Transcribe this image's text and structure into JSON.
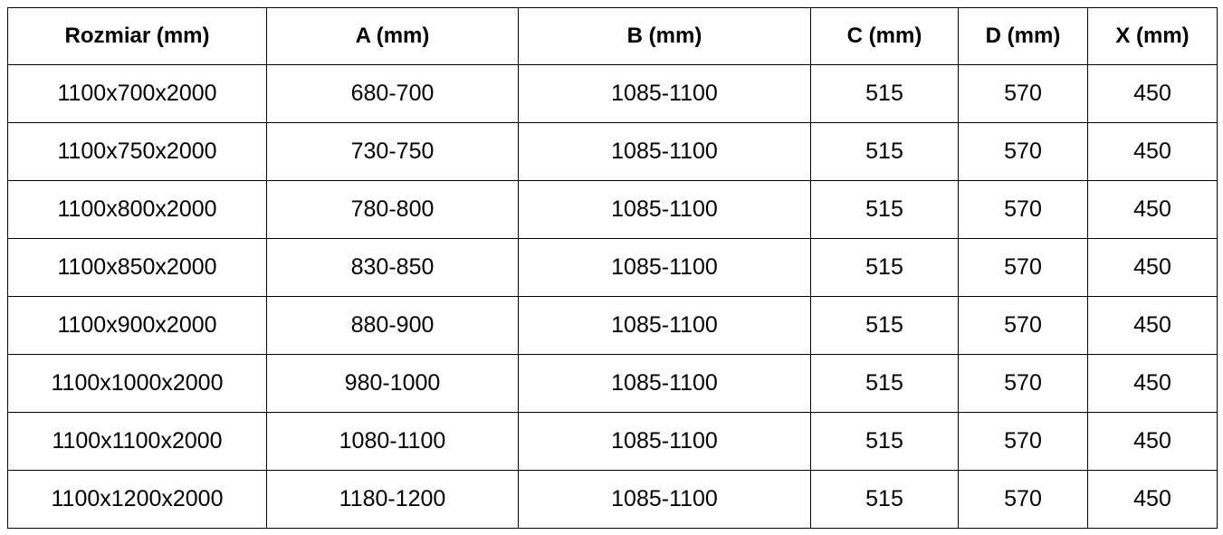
{
  "table": {
    "headers": [
      "Rozmiar (mm)",
      "A (mm)",
      "B (mm)",
      "C (mm)",
      "D (mm)",
      "X (mm)"
    ],
    "rows": [
      [
        "1100x700x2000",
        "680-700",
        "1085-1100",
        "515",
        "570",
        "450"
      ],
      [
        "1100x750x2000",
        "730-750",
        "1085-1100",
        "515",
        "570",
        "450"
      ],
      [
        "1100x800x2000",
        "780-800",
        "1085-1100",
        "515",
        "570",
        "450"
      ],
      [
        "1100x850x2000",
        "830-850",
        "1085-1100",
        "515",
        "570",
        "450"
      ],
      [
        "1100x900x2000",
        "880-900",
        "1085-1100",
        "515",
        "570",
        "450"
      ],
      [
        "1100x1000x2000",
        "980-1000",
        "1085-1100",
        "515",
        "570",
        "450"
      ],
      [
        "1100x1100x2000",
        "1080-1100",
        "1085-1100",
        "515",
        "570",
        "450"
      ],
      [
        "1100x1200x2000",
        "1180-1200",
        "1085-1100",
        "515",
        "570",
        "450"
      ]
    ]
  }
}
